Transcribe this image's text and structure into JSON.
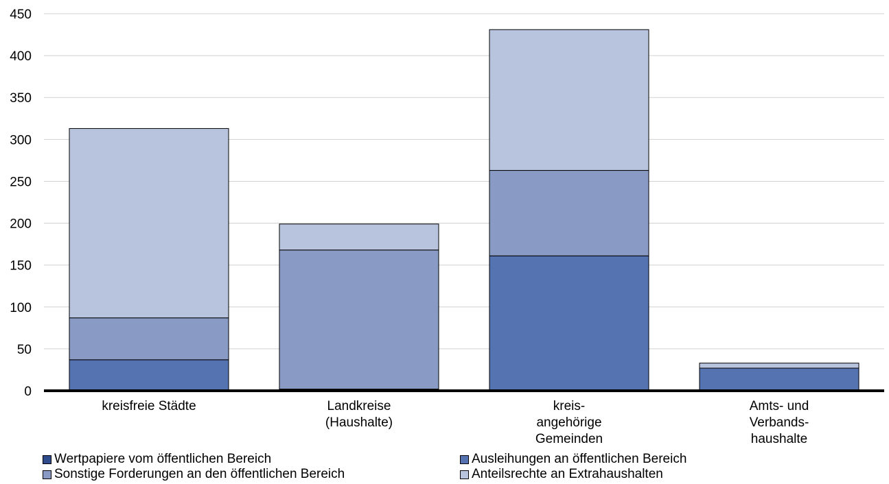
{
  "chart_data": {
    "type": "bar",
    "stacked": true,
    "categories": [
      [
        "kreisfreie Städte"
      ],
      [
        "Landkreise",
        "(Haushalte)"
      ],
      [
        "kreis-",
        "angehörige",
        "Gemeinden"
      ],
      [
        "Amts- und",
        "Verbands-",
        "haushalte"
      ]
    ],
    "series": [
      {
        "name": "Wertpapiere vom öffentlichen Bereich",
        "color": "#2e4c8c",
        "values": [
          0,
          0,
          0,
          0
        ]
      },
      {
        "name": "Ausleihungen an öffentlichen Bereich",
        "color": "#5572b1",
        "values": [
          37,
          2,
          161,
          27
        ]
      },
      {
        "name": "Sonstige Forderungen an den öffentlichen Bereich",
        "color": "#899bc5",
        "values": [
          50,
          166,
          102,
          0
        ]
      },
      {
        "name": "Anteilsrechte an Extrahaushalten",
        "color": "#b8c3dd",
        "values": [
          226,
          31,
          168,
          6
        ]
      }
    ],
    "title": "",
    "xlabel": "",
    "ylabel": "",
    "ylim": [
      0,
      450
    ],
    "yticks": [
      0,
      50,
      100,
      150,
      200,
      250,
      300,
      350,
      400,
      450
    ],
    "grid": true,
    "legend": "bottom"
  }
}
